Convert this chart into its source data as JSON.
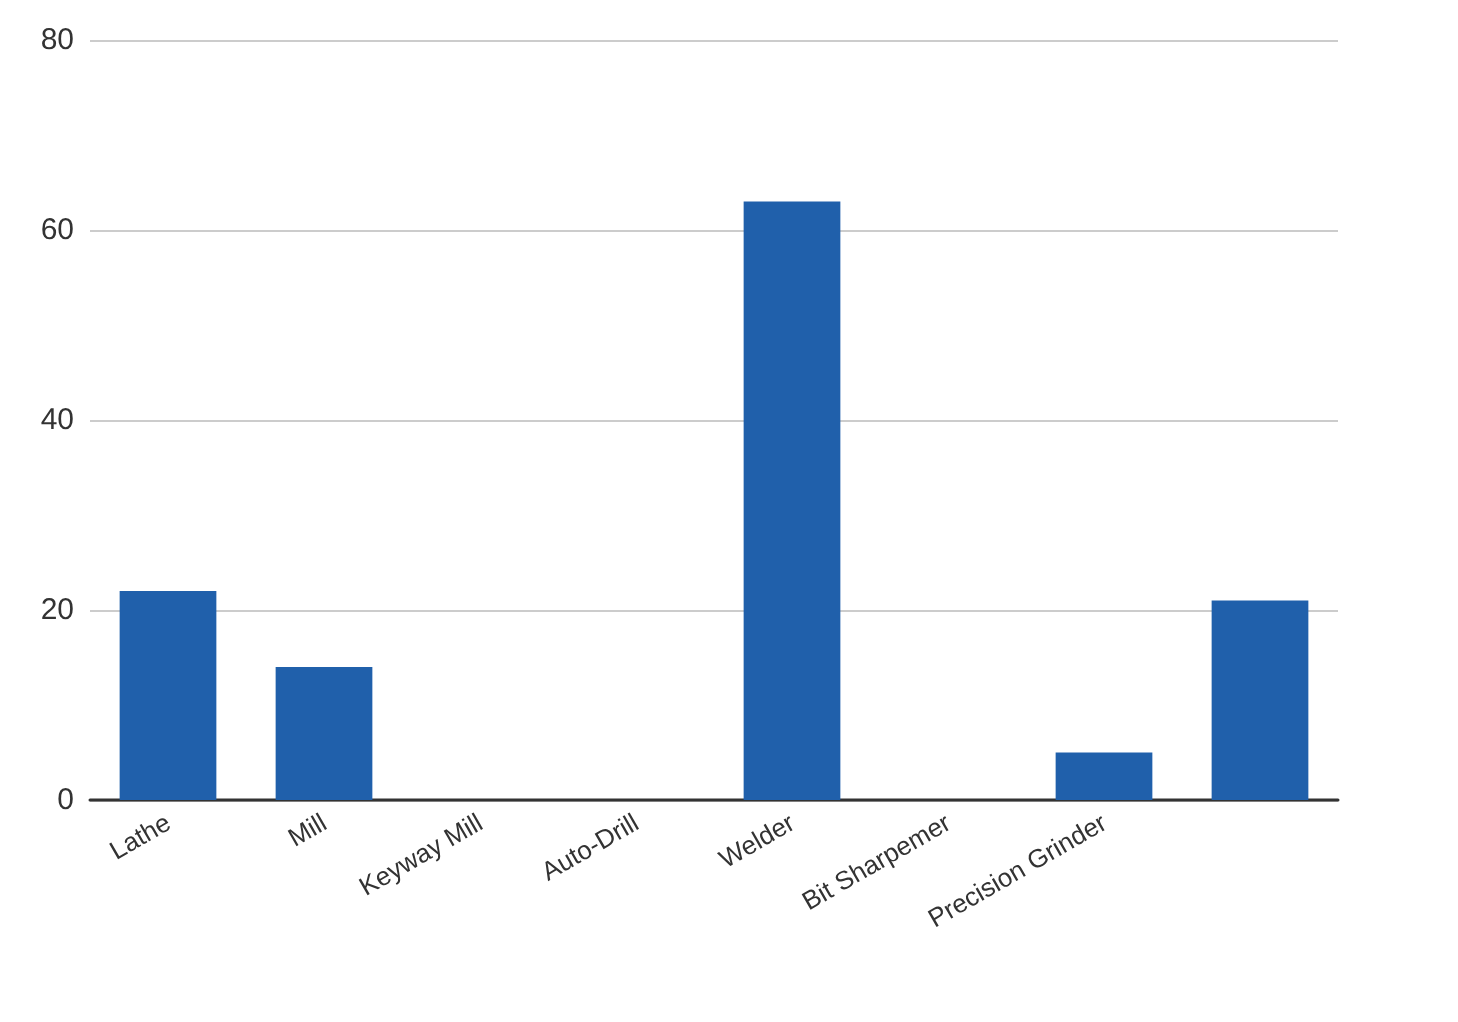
{
  "chart_data": {
    "type": "bar",
    "categories": [
      "Lathe",
      "Mill",
      "Keyway Mill",
      "Auto-Drill",
      "Welder",
      "Bit Sharpemer",
      "Precision Grinder",
      null
    ],
    "values": [
      22,
      14,
      0,
      0,
      63,
      0,
      5,
      21
    ],
    "color": "#2060ab",
    "ylim": [
      0,
      80
    ],
    "yticks": [
      0,
      20,
      40,
      60,
      80
    ],
    "grid": "y"
  }
}
